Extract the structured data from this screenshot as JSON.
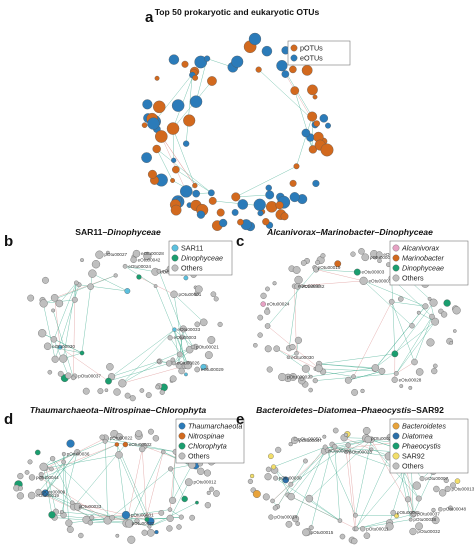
{
  "panels": [
    {
      "id": "a",
      "letter": "a",
      "title": "Top 50 prokaryotic and eukaryotic OTUs",
      "title_italic": false,
      "legend": [
        {
          "label": "pOTUs",
          "color": "#d2691e",
          "italic": false
        },
        {
          "label": "eOTUs",
          "color": "#2b7bb9",
          "italic": false
        }
      ],
      "node_labels": []
    },
    {
      "id": "b",
      "letter": "b",
      "title": "SAR11–Dinophyceae",
      "title_parts": [
        {
          "text": "SAR11–",
          "italic": false
        },
        {
          "text": "Dinophyceae",
          "italic": true
        }
      ],
      "legend": [
        {
          "label": "SAR11",
          "color": "#5bc0de",
          "italic": false
        },
        {
          "label": "Dinophyceae",
          "color": "#1a9e6f",
          "italic": true
        },
        {
          "label": "Others",
          "color": "#bfbfbf",
          "italic": false
        }
      ],
      "node_labels": [
        "eOtu00033",
        "eOtu00001",
        "eOtu00030",
        "pOtu00001",
        "eOtu00042",
        "eOtu00005",
        "eOtu00028",
        "eOtu00024",
        "eOtu00016",
        "eOtu00003",
        "eOtu00026",
        "eOtu00029",
        "pOtu00027",
        "pOtu00021",
        "pOtu00037"
      ]
    },
    {
      "id": "c",
      "letter": "c",
      "title": "Alcanivorax–Marinobacter–Dinophyceae",
      "title_parts": [
        {
          "text": "Alcanivorax–Marinobacter–Dinophyceae",
          "italic": true
        }
      ],
      "legend": [
        {
          "label": "Alcanivorax",
          "color": "#e7a2c4",
          "italic": true
        },
        {
          "label": "Marinobacter",
          "color": "#d2691e",
          "italic": true
        },
        {
          "label": "Dinophyceae",
          "color": "#1a9e6f",
          "italic": true
        },
        {
          "label": "Others",
          "color": "#bfbfbf",
          "italic": false
        }
      ],
      "node_labels": [
        "eOtu00033",
        "eOtu00001",
        "eOtu00030",
        "pOtu00019",
        "eOtu00042",
        "eOtu00005",
        "eOtu00028",
        "eOtu00024",
        "eOtu00016",
        "eOtu00003",
        "pOtu00002",
        "pOtu00008",
        "pOtu00018"
      ]
    },
    {
      "id": "d",
      "letter": "d",
      "title": "Thaumarchaeota–Nitrospinae–Chlorophyta",
      "title_parts": [
        {
          "text": "Thaumarchaeota–Nitrospinae–Chlorophyta",
          "italic": true
        }
      ],
      "legend": [
        {
          "label": "Thaumarchaeota",
          "color": "#2b7bb9",
          "italic": true
        },
        {
          "label": "Nitrospinae",
          "color": "#d2691e",
          "italic": true
        },
        {
          "label": "Chlorophyta",
          "color": "#1a9e6f",
          "italic": true
        },
        {
          "label": "Others",
          "color": "#bfbfbf",
          "italic": false
        }
      ],
      "node_labels": [
        "pOtu00022",
        "pOtu00033",
        "eOtu00019",
        "pOtu00009",
        "pOtu00010",
        "pOtu00032",
        "eOtu00032",
        "pOtu00036",
        "pOtu00012",
        "pOtu00044",
        "pOtu00031"
      ]
    },
    {
      "id": "e",
      "letter": "e",
      "title": "Bacteroidetes–Diatomea–Phaeocystis–SAR92",
      "title_parts": [
        {
          "text": "Bacteroidetes–Diatomea–Phaeocystis",
          "italic": true
        },
        {
          "text": "–SAR92",
          "italic": false
        }
      ],
      "legend": [
        {
          "label": "Bacteroidetes",
          "color": "#e8a33a",
          "italic": true
        },
        {
          "label": "Diatomea",
          "color": "#2b6fa8",
          "italic": true
        },
        {
          "label": "Phaeocystis",
          "color": "#1a9e6f",
          "italic": true
        },
        {
          "label": "SAR92",
          "color": "#f2de6a",
          "italic": false
        },
        {
          "label": "Others",
          "color": "#bfbfbf",
          "italic": false
        }
      ],
      "node_labels": [
        "pOtu00048",
        "pOtu00032",
        "pOtu00045",
        "pOtu00023",
        "pOtu00038",
        "pOtu00030",
        "pOtu00007",
        "pOtu00047",
        "pOtu00011",
        "pOtu00014",
        "pOtu00037",
        "pOtu00015",
        "pOtu00050",
        "pOtu00013",
        "pOtu00003",
        "pOtu00028"
      ]
    }
  ]
}
